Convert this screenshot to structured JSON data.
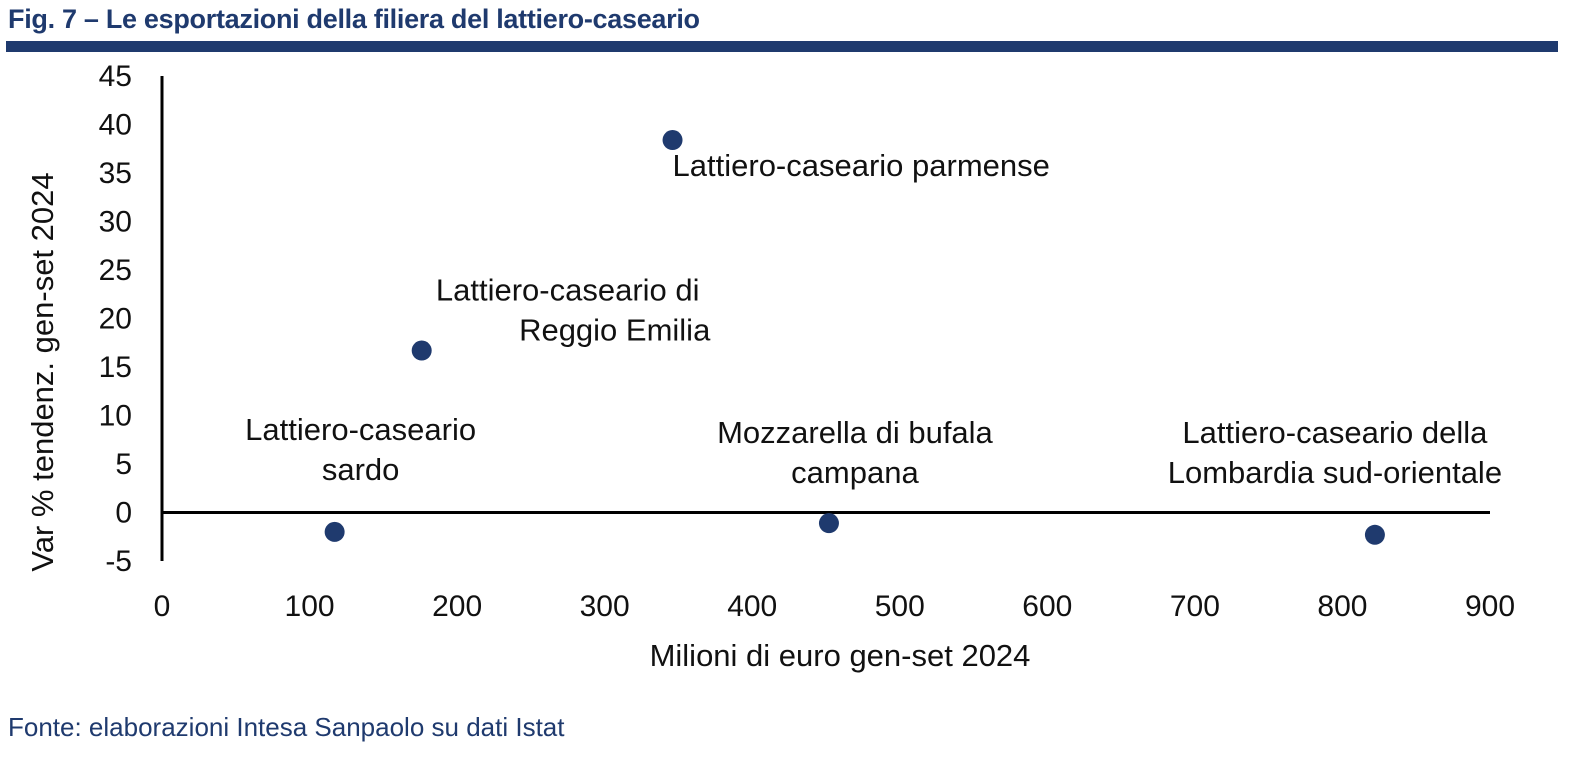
{
  "title": "Fig. 7 – Le esportazioni della filiera del lattiero-caseario",
  "source": "Fonte: elaborazioni Intesa Sanpaolo su dati Istat",
  "colors": {
    "brand": "#1f3a6e",
    "marker": "#1f3a6e",
    "axis": "#000000",
    "text": "#111111"
  },
  "chart_data": {
    "type": "scatter",
    "xlabel": "Milioni di euro gen-set 2024",
    "ylabel": "Var % tendenz. gen-set 2024",
    "xlim": [
      0,
      900
    ],
    "ylim": [
      -5,
      45
    ],
    "xticks": [
      0,
      100,
      200,
      300,
      400,
      500,
      600,
      700,
      800,
      900
    ],
    "yticks": [
      45,
      40,
      35,
      30,
      25,
      20,
      15,
      10,
      5,
      0,
      -5
    ],
    "grid": false,
    "legend": "none",
    "points": [
      {
        "label": [
          "Lattiero-caseario",
          "sardo"
        ],
        "x": 117,
        "y": -2
      },
      {
        "label": [
          "Lattiero-caseario di",
          "Reggio Emilia"
        ],
        "x": 176,
        "y": 16.7
      },
      {
        "label": [
          "Lattiero-caseario parmense"
        ],
        "x": 346,
        "y": 38.4
      },
      {
        "label": [
          "Mozzarella di bufala",
          "campana"
        ],
        "x": 452,
        "y": -1.1
      },
      {
        "label": [
          "Lattiero-caseario della",
          "Lombardia sud-orientale"
        ],
        "x": 822,
        "y": -2.3
      }
    ]
  }
}
